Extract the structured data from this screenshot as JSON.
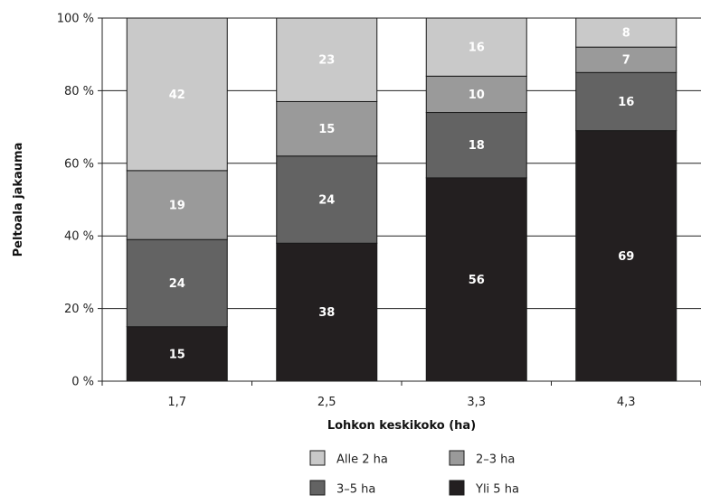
{
  "chart_data": {
    "type": "bar",
    "stacked": true,
    "categories": [
      "1,7",
      "2,5",
      "3,3",
      "4,3"
    ],
    "series": [
      {
        "name": "Yli 5 ha",
        "values": [
          15,
          38,
          56,
          69
        ],
        "color": "#231f20",
        "label_color": "#ffffff"
      },
      {
        "name": "3–5 ha",
        "values": [
          24,
          24,
          18,
          16
        ],
        "color": "#636363",
        "label_color": "#ffffff"
      },
      {
        "name": "2–3 ha",
        "values": [
          19,
          15,
          10,
          7
        ],
        "color": "#9a9a9a",
        "label_color": "#ffffff"
      },
      {
        "name": "Alle 2 ha",
        "values": [
          42,
          23,
          16,
          8
        ],
        "color": "#c9c9c9",
        "label_color": "#ffffff"
      }
    ],
    "xlabel": "Lohkon keskikoko (ha)",
    "ylabel": "Peltoala jakauma",
    "ylim": [
      0,
      100
    ],
    "yticks": [
      "0 %",
      "20 %",
      "40 %",
      "60 %",
      "80 %",
      "100 %"
    ],
    "grid": true,
    "legend_position": "bottom",
    "legend_order": [
      "Alle 2 ha",
      "2–3 ha",
      "3–5 ha",
      "Yli 5 ha"
    ]
  }
}
